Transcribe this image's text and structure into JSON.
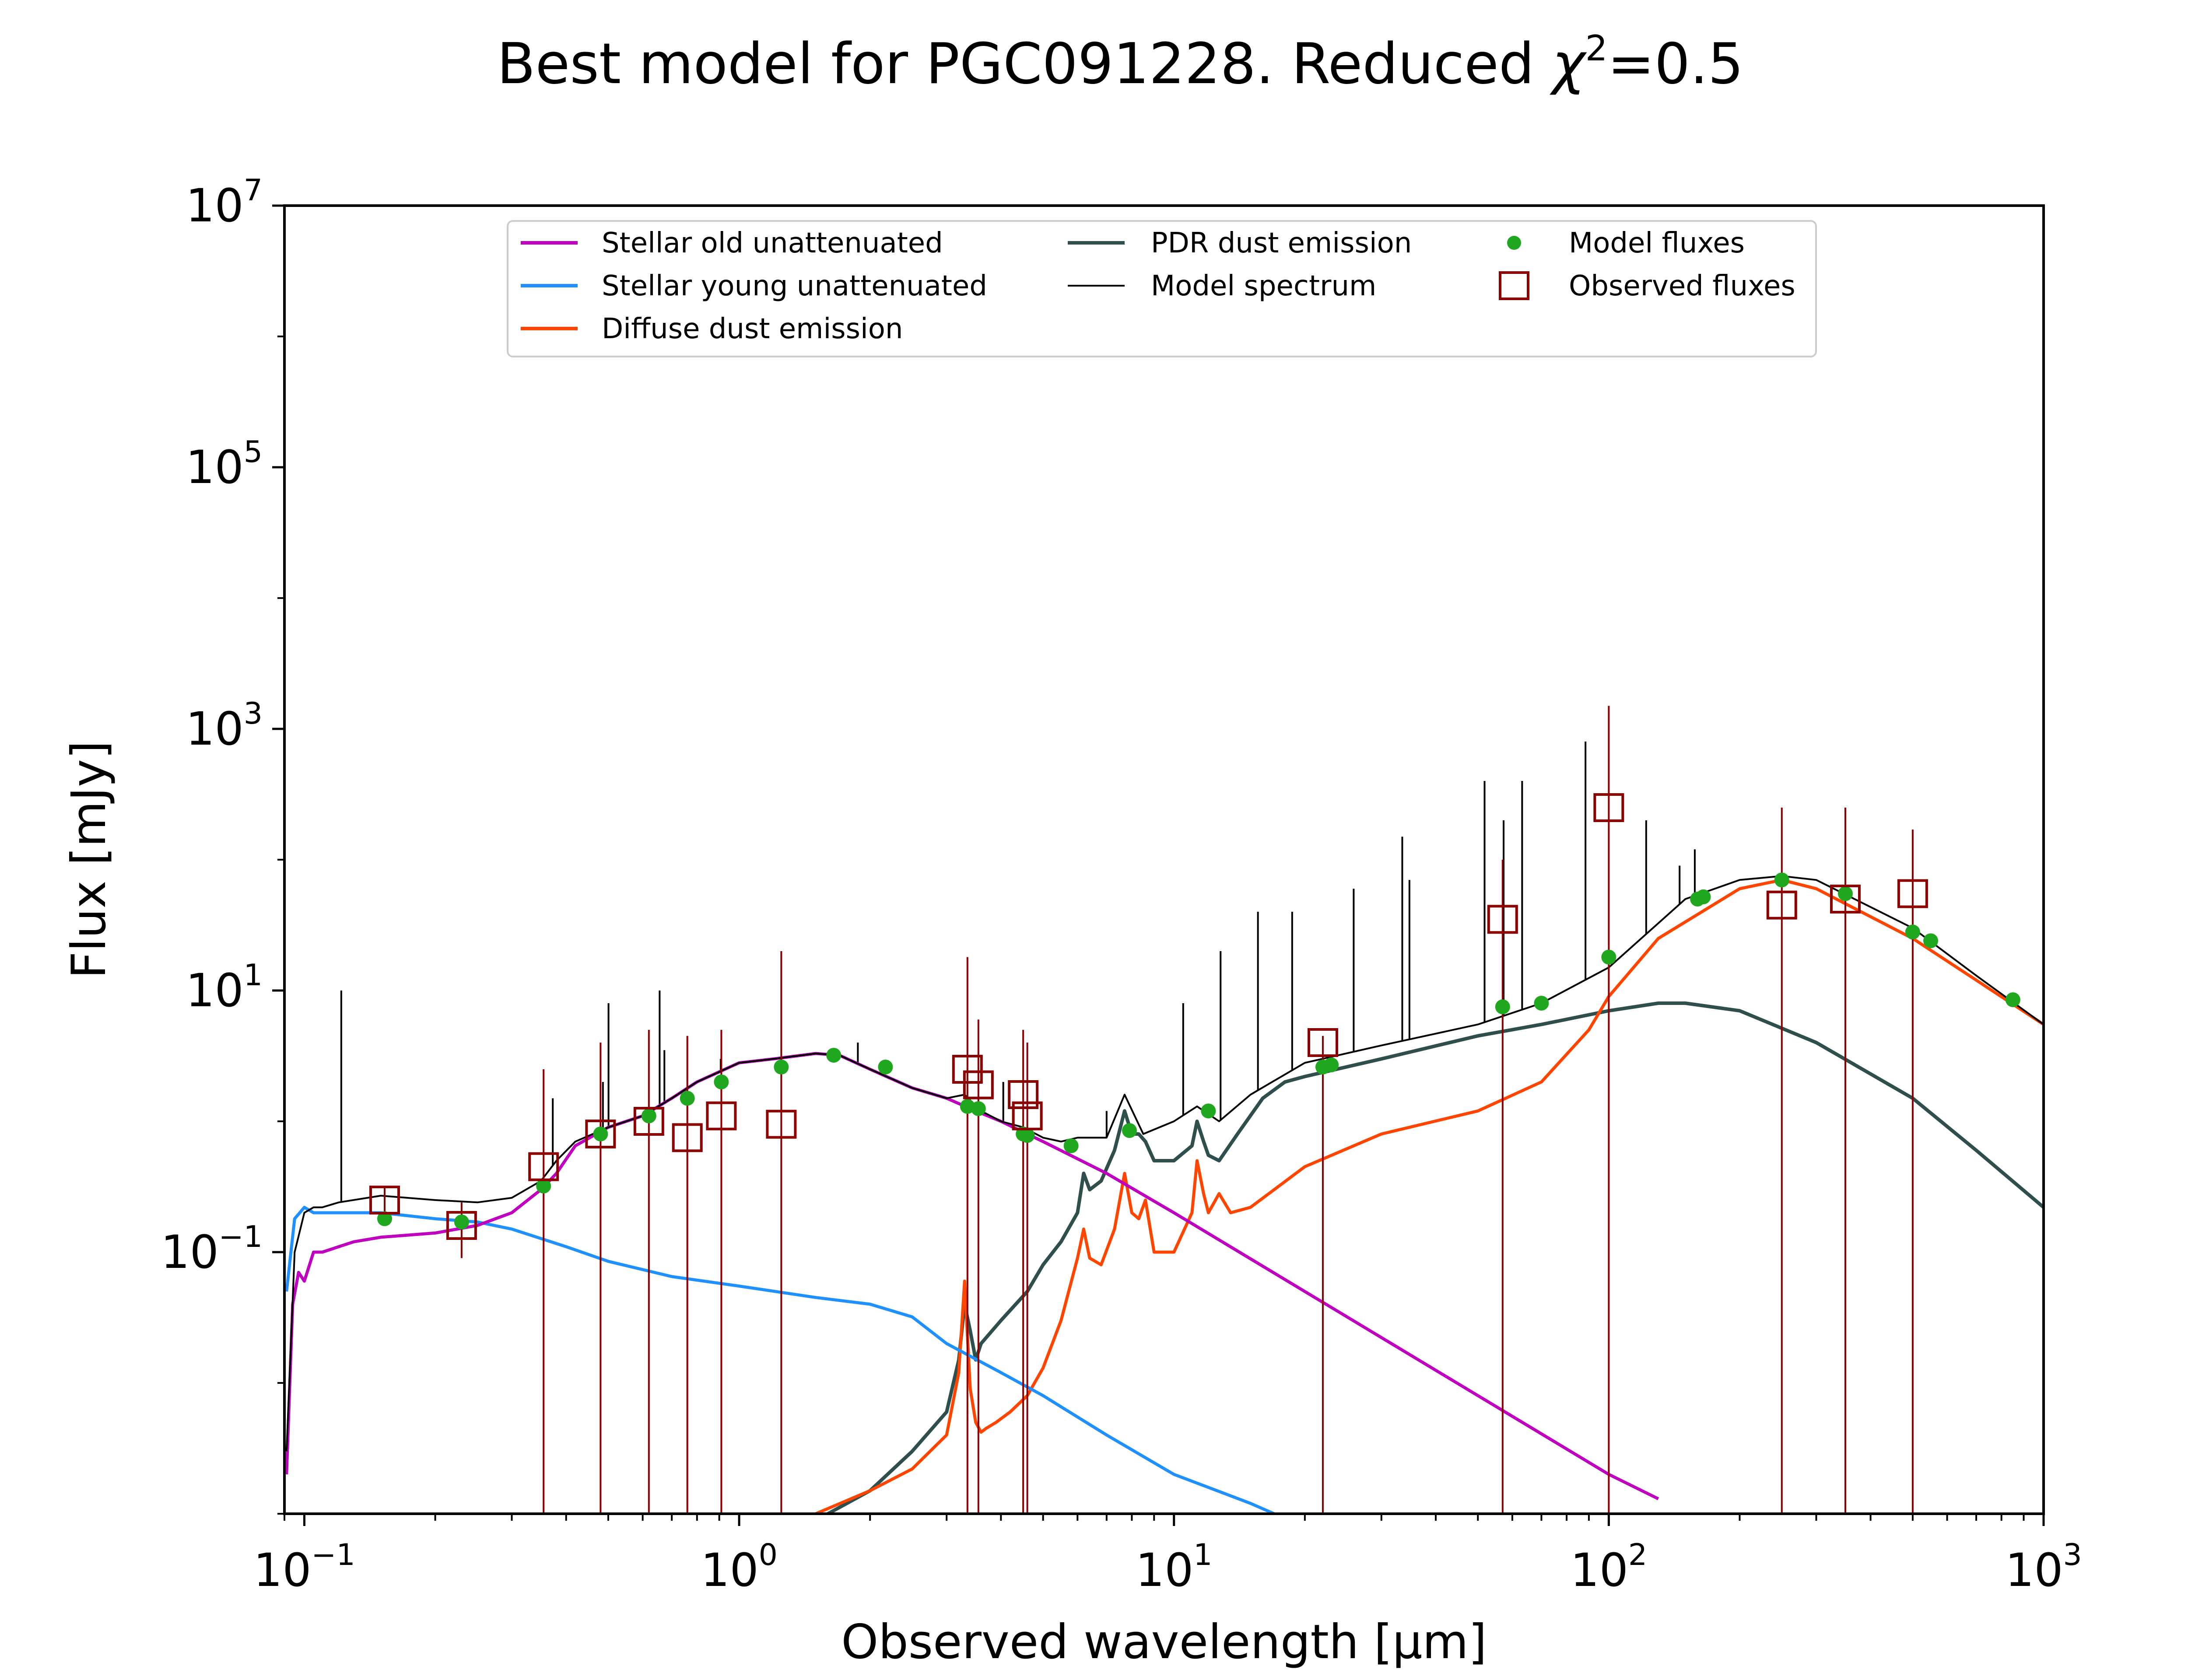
{
  "chart_data": {
    "type": "line",
    "title": "Best model for PGC091228. Reduced χ²=0.5",
    "title_main": "Best model for PGC091228. Reduced ",
    "title_chi": "χ",
    "title_sup": "2",
    "title_tail": "=0.5",
    "xlabel": "Observed wavelength [μm]",
    "ylabel": "Flux [mJy]",
    "x_scale": "log",
    "y_scale": "log",
    "xlim": [
      0.09,
      1000
    ],
    "ylim": [
      0.001,
      10000000
    ],
    "grid": false,
    "legend_position": "top-center",
    "x_ticks": [
      {
        "value": 0.1,
        "base": "10",
        "exp": "−1"
      },
      {
        "value": 1,
        "base": "10",
        "exp": "0"
      },
      {
        "value": 10,
        "base": "10",
        "exp": "1"
      },
      {
        "value": 100,
        "base": "10",
        "exp": "2"
      },
      {
        "value": 1000,
        "base": "10",
        "exp": "3"
      }
    ],
    "y_ticks": [
      {
        "value": 0.1,
        "base": "10",
        "exp": "−1"
      },
      {
        "value": 10,
        "base": "10",
        "exp": "1"
      },
      {
        "value": 1000,
        "base": "10",
        "exp": "3"
      },
      {
        "value": 100000,
        "base": "10",
        "exp": "5"
      },
      {
        "value": 10000000,
        "base": "10",
        "exp": "7"
      }
    ],
    "series": [
      {
        "name": "Stellar old unattenuated",
        "color": "#bf00bf",
        "x": [
          0.091,
          0.094,
          0.097,
          0.1,
          0.105,
          0.11,
          0.12,
          0.13,
          0.15,
          0.2,
          0.25,
          0.3,
          0.35,
          0.38,
          0.42,
          0.5,
          0.6,
          0.7,
          0.8,
          1.0,
          1.2,
          1.5,
          1.7,
          2.0,
          2.5,
          3.0,
          3.5,
          4.0,
          5.0,
          7.0,
          10,
          20,
          50,
          100,
          130
        ],
        "y": [
          0.002,
          0.04,
          0.07,
          0.06,
          0.1,
          0.1,
          0.11,
          0.12,
          0.13,
          0.14,
          0.16,
          0.2,
          0.3,
          0.4,
          0.65,
          0.9,
          1.1,
          1.5,
          2.0,
          2.8,
          3.0,
          3.3,
          3.2,
          2.5,
          1.8,
          1.5,
          1.2,
          1.0,
          0.7,
          0.4,
          0.2,
          0.05,
          0.008,
          0.002,
          0.0013
        ]
      },
      {
        "name": "Stellar young unattenuated",
        "color": "#1e90ff",
        "x": [
          0.091,
          0.095,
          0.1,
          0.105,
          0.11,
          0.12,
          0.15,
          0.2,
          0.25,
          0.3,
          0.4,
          0.5,
          0.7,
          1.0,
          1.5,
          2.0,
          2.5,
          3.0,
          4.0,
          5.0,
          7.0,
          10,
          15,
          17
        ],
        "y": [
          0.05,
          0.18,
          0.22,
          0.2,
          0.2,
          0.2,
          0.2,
          0.18,
          0.17,
          0.15,
          0.11,
          0.085,
          0.065,
          0.055,
          0.045,
          0.04,
          0.032,
          0.02,
          0.012,
          0.008,
          0.004,
          0.002,
          0.0012,
          0.001
        ]
      },
      {
        "name": "Diffuse dust emission",
        "color": "#ff4500",
        "x": [
          1.5,
          2.0,
          2.5,
          3.0,
          3.2,
          3.3,
          3.4,
          3.5,
          3.6,
          3.7,
          3.9,
          4.2,
          4.6,
          5.0,
          5.5,
          6.0,
          6.2,
          6.4,
          6.8,
          7.3,
          7.7,
          8.0,
          8.3,
          8.6,
          9.0,
          10.0,
          11.0,
          11.3,
          11.7,
          12.0,
          12.7,
          13.5,
          15,
          20,
          30,
          50,
          70,
          90,
          100,
          130,
          200,
          250,
          300,
          500,
          700,
          1000
        ],
        "y": [
          0.001,
          0.0015,
          0.0022,
          0.004,
          0.012,
          0.06,
          0.009,
          0.005,
          0.0042,
          0.0045,
          0.005,
          0.006,
          0.008,
          0.013,
          0.03,
          0.09,
          0.15,
          0.09,
          0.08,
          0.15,
          0.4,
          0.2,
          0.18,
          0.25,
          0.1,
          0.1,
          0.2,
          0.5,
          0.28,
          0.2,
          0.28,
          0.2,
          0.22,
          0.45,
          0.8,
          1.2,
          2.0,
          5.0,
          9.0,
          25.0,
          60.0,
          70.0,
          60.0,
          25.0,
          12.0,
          5.5
        ]
      },
      {
        "name": "PDR dust emission",
        "color": "#2f4f4f",
        "x": [
          1.6,
          2.0,
          2.5,
          3.0,
          3.2,
          3.3,
          3.4,
          3.5,
          3.6,
          4.0,
          4.6,
          5.0,
          5.5,
          6.0,
          6.2,
          6.4,
          6.8,
          7.3,
          7.7,
          8.0,
          8.3,
          8.6,
          9.0,
          10.0,
          11.0,
          11.3,
          11.7,
          12.0,
          12.7,
          14.0,
          16.0,
          18.0,
          20.0,
          30,
          50,
          70,
          100,
          130,
          150,
          200,
          300,
          500,
          700,
          1000
        ],
        "y": [
          0.001,
          0.0015,
          0.003,
          0.006,
          0.015,
          0.04,
          0.025,
          0.015,
          0.02,
          0.03,
          0.05,
          0.08,
          0.12,
          0.2,
          0.4,
          0.3,
          0.35,
          0.6,
          1.2,
          0.8,
          0.8,
          0.7,
          0.5,
          0.5,
          0.65,
          1.0,
          0.7,
          0.55,
          0.5,
          0.8,
          1.5,
          2.0,
          2.2,
          3.0,
          4.5,
          5.5,
          7.0,
          8.0,
          8.0,
          7.0,
          4.0,
          1.5,
          0.6,
          0.22
        ]
      },
      {
        "name": "Model spectrum",
        "color": "#000000",
        "x": [
          0.091,
          0.095,
          0.1,
          0.105,
          0.11,
          0.12,
          0.15,
          0.2,
          0.25,
          0.3,
          0.35,
          0.38,
          0.42,
          0.5,
          0.6,
          0.7,
          0.8,
          1.0,
          1.2,
          1.5,
          1.7,
          2.0,
          2.5,
          3.0,
          3.3,
          3.6,
          4.0,
          4.5,
          5.0,
          5.5,
          6.0,
          7.0,
          7.7,
          8.5,
          10.0,
          11.3,
          12.7,
          15,
          20,
          30,
          50,
          70,
          100,
          150,
          200,
          250,
          300,
          500,
          700,
          1000
        ],
        "y": [
          0.003,
          0.1,
          0.2,
          0.22,
          0.22,
          0.24,
          0.27,
          0.25,
          0.24,
          0.26,
          0.35,
          0.5,
          0.7,
          0.9,
          1.1,
          1.5,
          2.0,
          2.8,
          3.0,
          3.3,
          3.2,
          2.5,
          1.8,
          1.5,
          1.6,
          1.2,
          1.0,
          0.9,
          0.75,
          0.7,
          0.75,
          0.75,
          1.6,
          0.8,
          1.0,
          1.3,
          1.0,
          1.6,
          2.8,
          3.8,
          5.5,
          8.0,
          15.0,
          50.0,
          70.0,
          75.0,
          70.0,
          30.0,
          13.0,
          5.5
        ]
      }
    ],
    "model_spectrum_emission_lines": [
      {
        "x": 0.1216,
        "y": 10.0
      },
      {
        "x": 0.3727,
        "y": 1.5
      },
      {
        "x": 0.4861,
        "y": 2.0
      },
      {
        "x": 0.5007,
        "y": 8.0
      },
      {
        "x": 0.6563,
        "y": 10.0
      },
      {
        "x": 0.6731,
        "y": 3.5
      },
      {
        "x": 0.9069,
        "y": 3.0
      },
      {
        "x": 1.875,
        "y": 4.0
      },
      {
        "x": 4.05,
        "y": 2.0
      },
      {
        "x": 7.0,
        "y": 1.2
      },
      {
        "x": 10.5,
        "y": 8.0
      },
      {
        "x": 12.8,
        "y": 20.0
      },
      {
        "x": 15.6,
        "y": 40.0
      },
      {
        "x": 18.7,
        "y": 40.0
      },
      {
        "x": 25.9,
        "y": 60.0
      },
      {
        "x": 33.5,
        "y": 150.0
      },
      {
        "x": 34.8,
        "y": 70.0
      },
      {
        "x": 51.8,
        "y": 400.0
      },
      {
        "x": 57.3,
        "y": 200.0
      },
      {
        "x": 63.2,
        "y": 400.0
      },
      {
        "x": 88.4,
        "y": 800.0
      },
      {
        "x": 121.9,
        "y": 200.0
      },
      {
        "x": 145.5,
        "y": 90.0
      },
      {
        "x": 157.7,
        "y": 120.0
      }
    ],
    "model_fluxes": {
      "name": "Model fluxes",
      "color": "#1fa81f",
      "x": [
        0.153,
        0.23,
        0.355,
        0.48,
        0.62,
        0.76,
        0.91,
        1.25,
        1.65,
        2.17,
        3.35,
        3.55,
        4.5,
        4.6,
        5.8,
        7.9,
        12.0,
        22.0,
        23.0,
        57.0,
        70.0,
        100,
        160,
        165,
        250,
        350,
        500,
        550,
        850
      ],
      "y": [
        0.18,
        0.17,
        0.32,
        0.8,
        1.1,
        1.5,
        2.0,
        2.6,
        3.2,
        2.6,
        1.3,
        1.25,
        0.8,
        0.78,
        0.65,
        0.85,
        1.2,
        2.6,
        2.7,
        7.5,
        8.0,
        18.0,
        50.0,
        52.0,
        70.0,
        55.0,
        28.0,
        24.0,
        8.5
      ]
    },
    "observed_fluxes": {
      "name": "Observed fluxes",
      "color": "#8b0000",
      "points": [
        {
          "x": 0.153,
          "y": 0.25,
          "err_low": 0.2,
          "err_high": 0.32
        },
        {
          "x": 0.23,
          "y": 0.16,
          "err_low": 0.09,
          "err_high": 0.24
        },
        {
          "x": 0.355,
          "y": 0.45,
          "err_low": 0.001,
          "err_high": 2.5
        },
        {
          "x": 0.48,
          "y": 0.8,
          "err_low": 0.001,
          "err_high": 4.0
        },
        {
          "x": 0.62,
          "y": 1.0,
          "err_low": 0.001,
          "err_high": 5.0
        },
        {
          "x": 0.76,
          "y": 0.75,
          "err_low": 0.001,
          "err_high": 4.5
        },
        {
          "x": 0.91,
          "y": 1.1,
          "err_low": 0.001,
          "err_high": 5.0
        },
        {
          "x": 1.25,
          "y": 0.95,
          "err_low": 0.001,
          "err_high": 20.0
        },
        {
          "x": 3.35,
          "y": 2.5,
          "err_low": 0.001,
          "err_high": 18.0
        },
        {
          "x": 3.55,
          "y": 1.9,
          "err_low": 0.001,
          "err_high": 6.0
        },
        {
          "x": 4.5,
          "y": 1.6,
          "err_low": 0.001,
          "err_high": 5.0
        },
        {
          "x": 4.6,
          "y": 1.1,
          "err_low": 0.001,
          "err_high": 4.0
        },
        {
          "x": 22.0,
          "y": 4.0,
          "err_low": 0.001,
          "err_high": 4.5
        },
        {
          "x": 57.0,
          "y": 35.0,
          "err_low": 0.001,
          "err_high": 100.0
        },
        {
          "x": 100,
          "y": 250.0,
          "err_low": 0.001,
          "err_high": 1500.0
        },
        {
          "x": 250,
          "y": 45.0,
          "err_low": 0.001,
          "err_high": 250.0
        },
        {
          "x": 350,
          "y": 50.0,
          "err_low": 0.001,
          "err_high": 250.0
        },
        {
          "x": 500,
          "y": 55.0,
          "err_low": 0.001,
          "err_high": 170.0
        }
      ]
    }
  }
}
